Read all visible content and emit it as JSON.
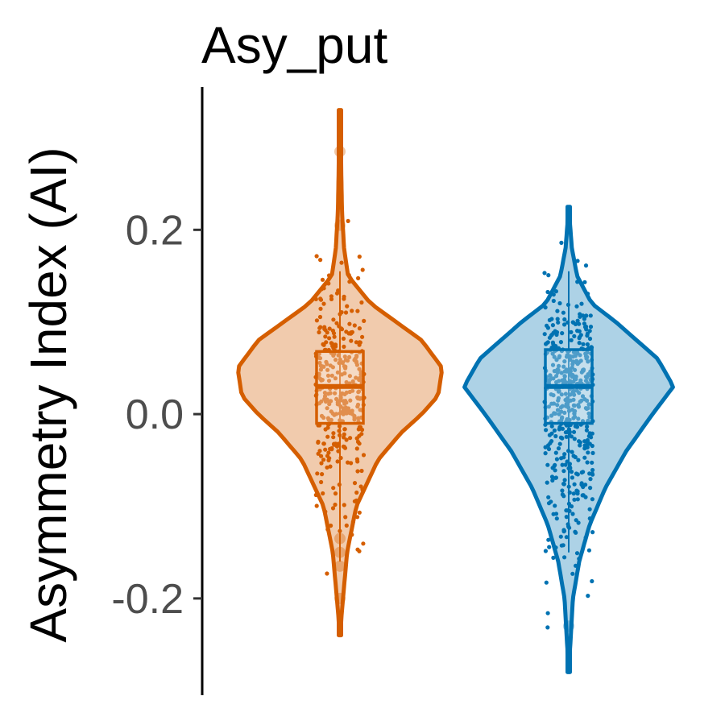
{
  "chart_data": {
    "type": "violin",
    "title": "Asy_put",
    "xlabel": "",
    "ylabel": "Asymmetry Index (AI)",
    "ylim": [
      -0.305,
      0.355
    ],
    "yticks": [
      -0.2,
      0.0,
      0.2
    ],
    "ytick_labels": [
      "-0.2",
      "0.0",
      "0.2"
    ],
    "x_axis_shown": false,
    "grid": false,
    "legend": "none",
    "series": [
      {
        "color": "#D55E00",
        "violin_range": [
          -0.24,
          0.33
        ],
        "density_profile": [
          [
            -0.24,
            0.0
          ],
          [
            -0.2,
            0.03
          ],
          [
            -0.15,
            0.07
          ],
          [
            -0.1,
            0.16
          ],
          [
            -0.05,
            0.37
          ],
          [
            -0.02,
            0.6
          ],
          [
            0.0,
            0.8
          ],
          [
            0.02,
            0.96
          ],
          [
            0.05,
            1.0
          ],
          [
            0.08,
            0.8
          ],
          [
            0.1,
            0.55
          ],
          [
            0.12,
            0.3
          ],
          [
            0.15,
            0.08
          ],
          [
            0.18,
            0.04
          ],
          [
            0.22,
            0.02
          ],
          [
            0.28,
            0.01
          ],
          [
            0.33,
            0.0
          ]
        ],
        "box": {
          "min": -0.16,
          "q1": -0.01,
          "median": 0.03,
          "q3": 0.068,
          "max": 0.155
        },
        "outliers": [
          0.285,
          0.205,
          -0.135,
          -0.15,
          -0.165,
          -0.2
        ]
      },
      {
        "color": "#0072B2",
        "violin_range": [
          -0.28,
          0.225
        ],
        "density_profile": [
          [
            -0.28,
            0.0
          ],
          [
            -0.24,
            0.02
          ],
          [
            -0.2,
            0.04
          ],
          [
            -0.16,
            0.1
          ],
          [
            -0.12,
            0.2
          ],
          [
            -0.08,
            0.35
          ],
          [
            -0.04,
            0.55
          ],
          [
            0.0,
            0.8
          ],
          [
            0.03,
            1.0
          ],
          [
            0.06,
            0.85
          ],
          [
            0.08,
            0.65
          ],
          [
            0.1,
            0.45
          ],
          [
            0.12,
            0.22
          ],
          [
            0.15,
            0.08
          ],
          [
            0.18,
            0.03
          ],
          [
            0.225,
            0.0
          ]
        ],
        "box": {
          "min": -0.15,
          "q1": -0.01,
          "median": 0.03,
          "q3": 0.07,
          "max": 0.155
        },
        "outliers": [
          -0.23
        ]
      }
    ]
  }
}
